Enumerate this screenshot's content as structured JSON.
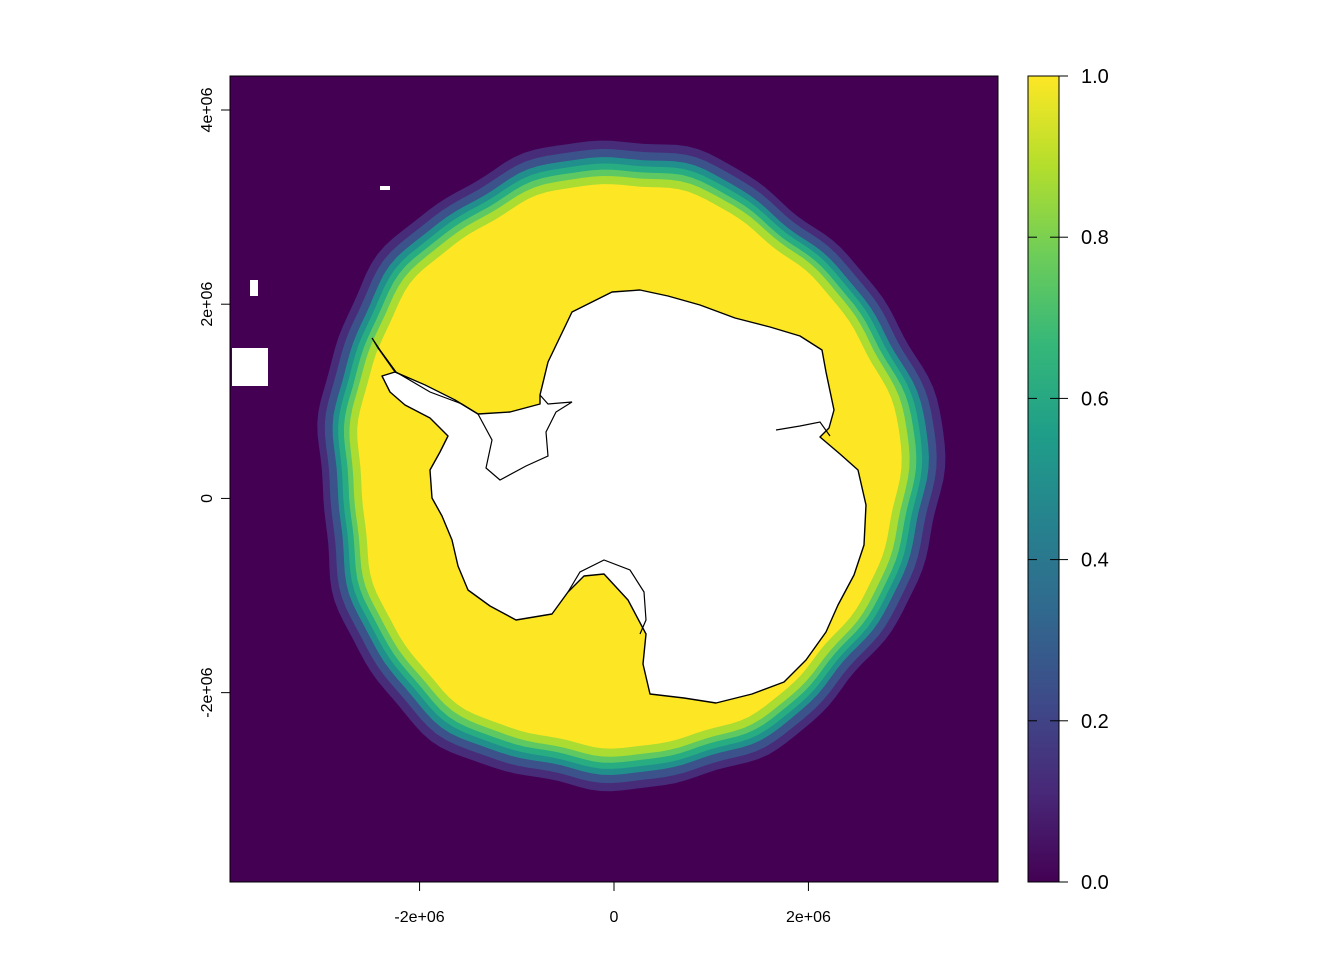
{
  "map": {
    "x_axis": {
      "ticks": [
        {
          "value": -2000000,
          "label": "-2e+06"
        },
        {
          "value": 0,
          "label": "0"
        },
        {
          "value": 2000000,
          "label": "2e+06"
        }
      ]
    },
    "y_axis": {
      "ticks": [
        {
          "value": 4000000,
          "label": "4e+06"
        },
        {
          "value": 2000000,
          "label": "2e+06"
        },
        {
          "value": 0,
          "label": "0"
        },
        {
          "value": -2000000,
          "label": "-2e+06"
        }
      ]
    },
    "extent": {
      "xmin": -3950000,
      "xmax": 3950000,
      "ymin": -3950000,
      "ymax": 4350000
    },
    "colors": {
      "background": "#440154",
      "land": "#ffffff",
      "coastline": "#000000"
    },
    "ice_layers": [
      {
        "level": 0.1,
        "color": "#472c7a"
      },
      {
        "level": 0.3,
        "color": "#3b528b"
      },
      {
        "level": 0.5,
        "color": "#21908c"
      },
      {
        "level": 0.65,
        "color": "#27ad81"
      },
      {
        "level": 0.8,
        "color": "#5ec962"
      },
      {
        "level": 0.92,
        "color": "#aadc32"
      },
      {
        "level": 1.0,
        "color": "#fde725"
      }
    ]
  },
  "legend": {
    "ticks": [
      {
        "value": 1.0,
        "label": "1.0"
      },
      {
        "value": 0.8,
        "label": "0.8"
      },
      {
        "value": 0.6,
        "label": "0.6"
      },
      {
        "value": 0.4,
        "label": "0.4"
      },
      {
        "value": 0.2,
        "label": "0.2"
      },
      {
        "value": 0.0,
        "label": "0.0"
      }
    ],
    "gradient": [
      "#440154",
      "#482878",
      "#3e4a89",
      "#31688e",
      "#26828e",
      "#1f9e89",
      "#35b779",
      "#6dcd59",
      "#b4de2c",
      "#fde725"
    ]
  }
}
